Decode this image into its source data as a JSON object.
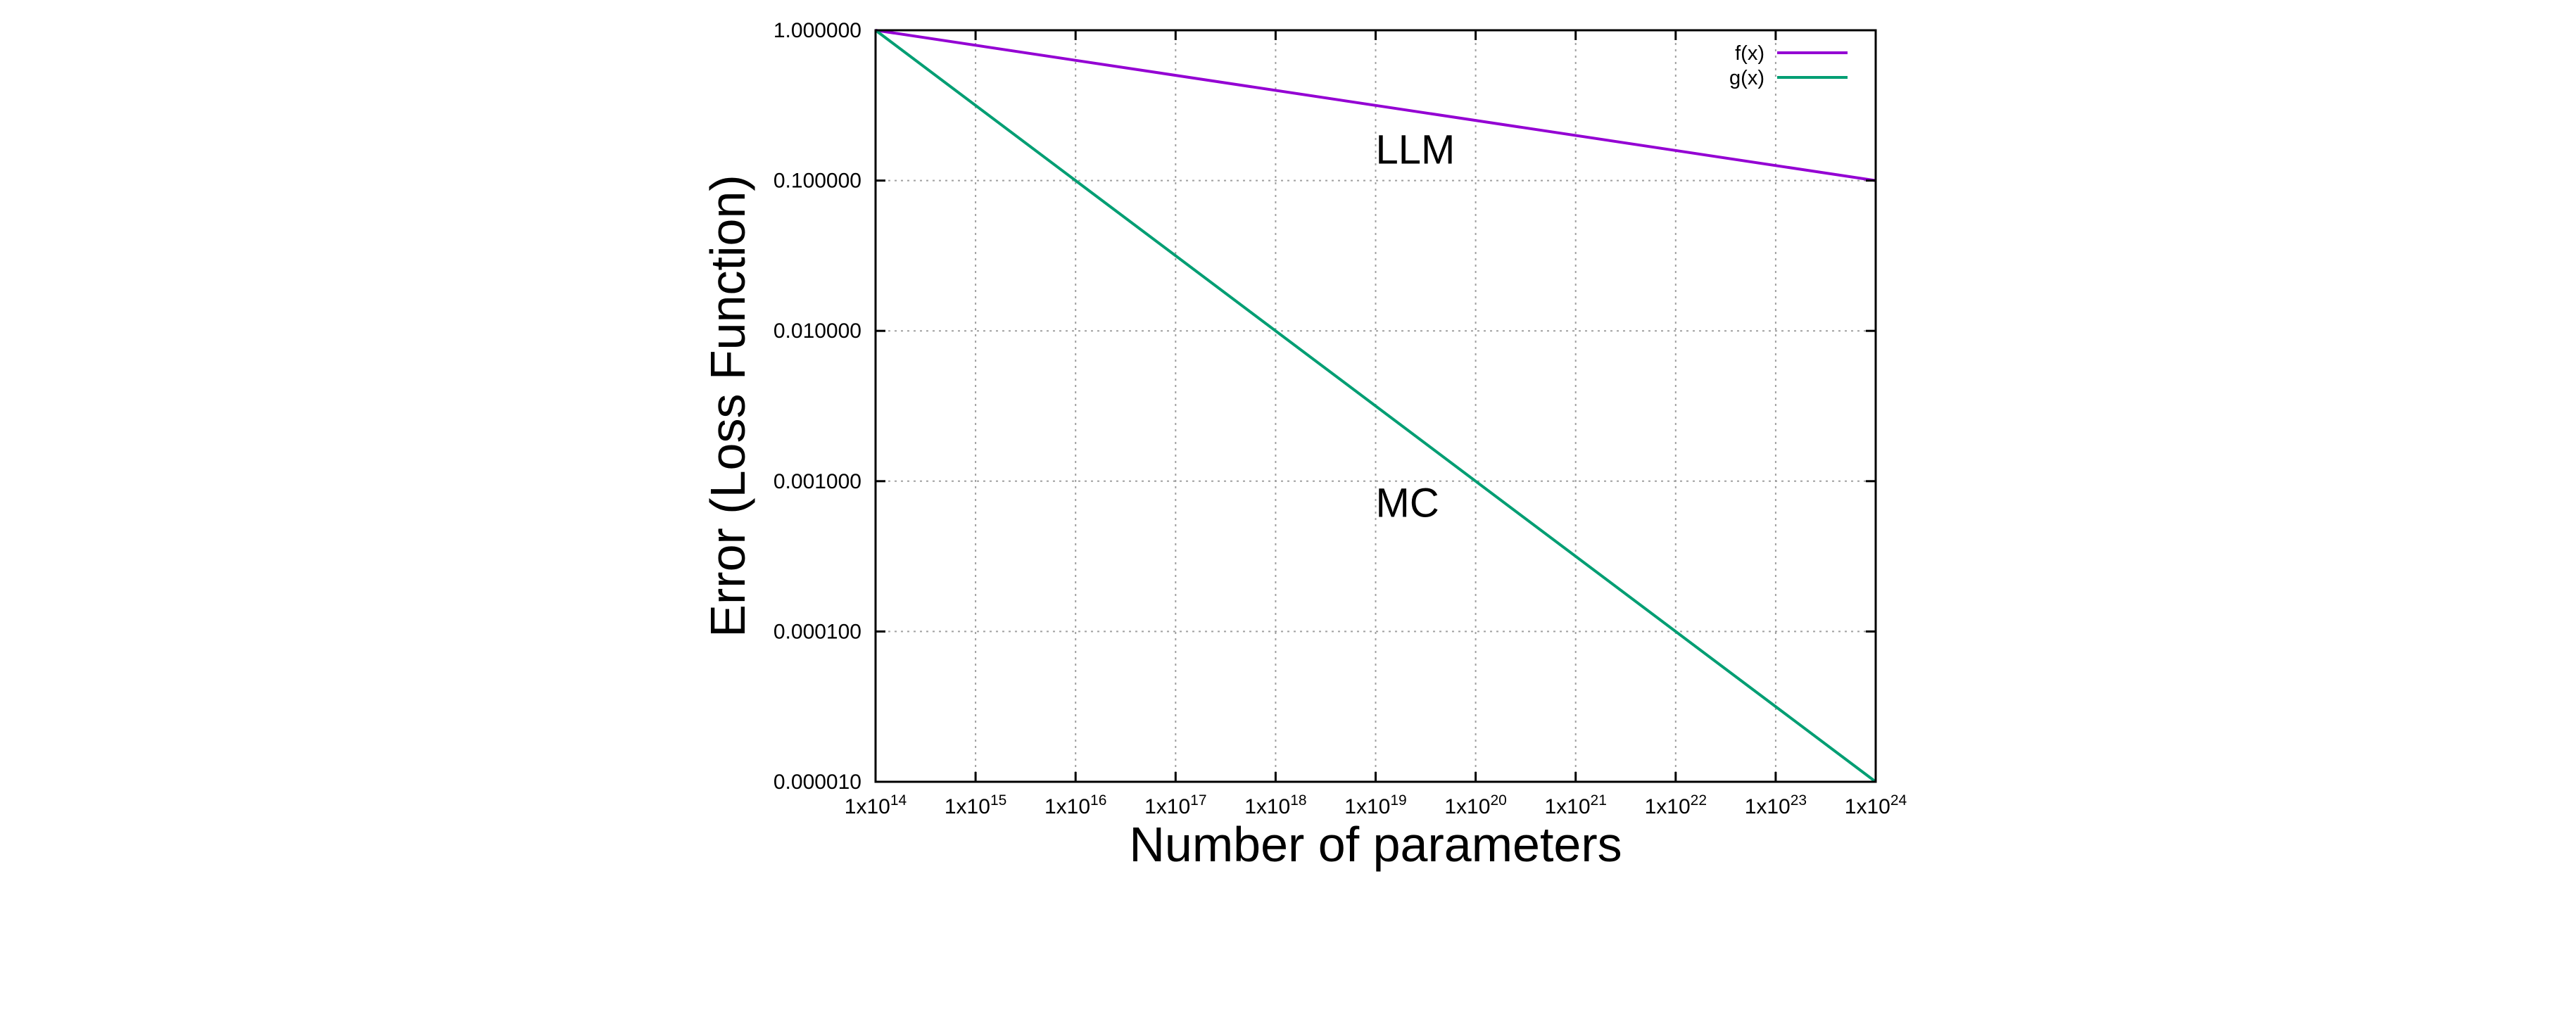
{
  "chart_data": {
    "type": "line",
    "xlabel": "Number of parameters",
    "ylabel": "Error (Loss Function)",
    "x_scale": "log",
    "y_scale": "log",
    "xlim": [
      100000000000000.0,
      1e+24
    ],
    "ylim": [
      1e-05,
      1.0
    ],
    "grid": true,
    "legend_position": "top-right",
    "x_ticks": [
      {
        "value": 100000000000000.0,
        "base": "1x10",
        "exp": "14"
      },
      {
        "value": 1000000000000000.0,
        "base": "1x10",
        "exp": "15"
      },
      {
        "value": 1e+16,
        "base": "1x10",
        "exp": "16"
      },
      {
        "value": 1e+17,
        "base": "1x10",
        "exp": "17"
      },
      {
        "value": 1e+18,
        "base": "1x10",
        "exp": "18"
      },
      {
        "value": 1e+19,
        "base": "1x10",
        "exp": "19"
      },
      {
        "value": 1e+20,
        "base": "1x10",
        "exp": "20"
      },
      {
        "value": 1e+21,
        "base": "1x10",
        "exp": "21"
      },
      {
        "value": 1e+22,
        "base": "1x10",
        "exp": "22"
      },
      {
        "value": 1e+23,
        "base": "1x10",
        "exp": "23"
      },
      {
        "value": 1e+24,
        "base": "1x10",
        "exp": "24"
      }
    ],
    "y_ticks": [
      {
        "value": 1.0,
        "label": "1.000000"
      },
      {
        "value": 0.1,
        "label": "0.100000"
      },
      {
        "value": 0.01,
        "label": "0.010000"
      },
      {
        "value": 0.001,
        "label": "0.001000"
      },
      {
        "value": 0.0001,
        "label": "0.000100"
      },
      {
        "value": 1e-05,
        "label": "0.000010"
      }
    ],
    "series": [
      {
        "name": "f(x)",
        "color": "#9400d3",
        "x": [
          100000000000000.0,
          1e+24
        ],
        "y": [
          1.0,
          0.1
        ]
      },
      {
        "name": "g(x)",
        "color": "#009e73",
        "x": [
          100000000000000.0,
          1e+24
        ],
        "y": [
          1.0,
          1e-05
        ]
      }
    ],
    "annotations": [
      {
        "text": "LLM",
        "x": 1e+19,
        "y": 0.13
      },
      {
        "text": "MC",
        "x": 1e+19,
        "y": 0.00058
      }
    ]
  }
}
